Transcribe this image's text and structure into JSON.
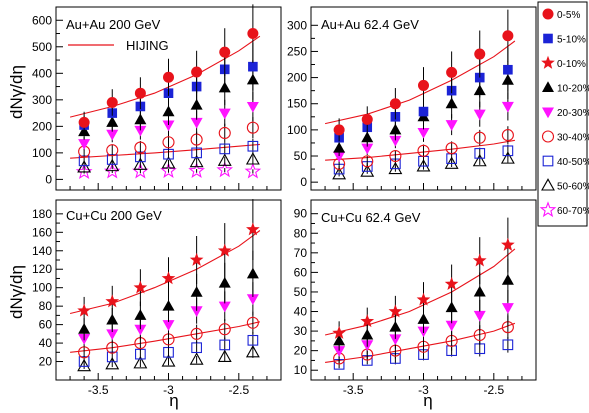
{
  "figure": {
    "ylabel": "dNγ/dη",
    "xlabel": "η",
    "legend": {
      "placement": "right",
      "items": [
        {
          "label": "0-5%",
          "marker": "circle-filled",
          "color": "#e8131b"
        },
        {
          "label": "5-10%",
          "marker": "square-filled",
          "color": "#1b23d6"
        },
        {
          "label": "0-10%",
          "marker": "star-filled",
          "color": "#e8131b"
        },
        {
          "label": "10-20%",
          "marker": "triangle-up-filled",
          "color": "#000000"
        },
        {
          "label": "20-30%",
          "marker": "triangle-down-filled",
          "color": "#ff13ff"
        },
        {
          "label": "30-40%",
          "marker": "circle-open",
          "color": "#e8131b"
        },
        {
          "label": "40-50%",
          "marker": "square-open",
          "color": "#1b23d6"
        },
        {
          "label": "50-60%",
          "marker": "triangle-up-open",
          "color": "#000000"
        },
        {
          "label": "60-70%",
          "marker": "star-open",
          "color": "#ff13ff"
        }
      ]
    },
    "hijing_label": "HIJING",
    "hijing_color": "#e8131b"
  },
  "chart_data": [
    {
      "type": "scatter",
      "title": "Au+Au 200 GeV",
      "x": [
        -3.6,
        -3.4,
        -3.2,
        -3.0,
        -2.8,
        -2.6,
        -2.4
      ],
      "xlim": [
        -3.8,
        -2.2
      ],
      "ylim": [
        -40,
        650
      ],
      "yticks": [
        0,
        100,
        200,
        300,
        400,
        500,
        600
      ],
      "xticks": [
        -3.5,
        -3,
        -2.5
      ],
      "legend": "HIJING",
      "series": [
        {
          "name": "0-5%",
          "values": [
            215,
            290,
            325,
            385,
            405,
            480,
            550
          ],
          "errors": [
            40,
            50,
            60,
            70,
            80,
            90,
            110
          ]
        },
        {
          "name": "5-10%",
          "values": [
            205,
            250,
            275,
            325,
            350,
            415,
            425
          ],
          "errors": [
            35,
            40,
            50,
            60,
            65,
            80,
            90
          ]
        },
        {
          "name": "10-20%",
          "values": [
            180,
            215,
            225,
            255,
            280,
            345,
            375
          ],
          "errors": [
            30,
            35,
            40,
            50,
            55,
            65,
            75
          ]
        },
        {
          "name": "20-30%",
          "values": [
            135,
            170,
            185,
            205,
            215,
            250,
            275
          ],
          "errors": [
            25,
            30,
            35,
            40,
            45,
            50,
            55
          ]
        },
        {
          "name": "30-40%",
          "values": [
            105,
            110,
            120,
            140,
            150,
            175,
            195
          ],
          "errors": [
            20,
            22,
            25,
            28,
            30,
            35,
            40
          ]
        },
        {
          "name": "40-50%",
          "values": [
            70,
            75,
            85,
            95,
            100,
            115,
            125
          ],
          "errors": [
            15,
            16,
            18,
            20,
            22,
            25,
            28
          ]
        },
        {
          "name": "50-60%",
          "values": [
            45,
            50,
            55,
            60,
            65,
            70,
            75
          ],
          "errors": [
            10,
            11,
            12,
            13,
            14,
            15,
            16
          ]
        },
        {
          "name": "60-70%",
          "values": [
            28,
            30,
            30,
            32,
            32,
            35,
            30
          ],
          "errors": [
            6,
            6,
            7,
            7,
            7,
            8,
            8
          ]
        }
      ],
      "hijing_lines": [
        {
          "x": [
            -3.7,
            -3.4,
            -3.1,
            -2.8,
            -2.5,
            -2.35
          ],
          "y": [
            235,
            275,
            325,
            395,
            485,
            540
          ]
        },
        {
          "x": [
            -3.7,
            -3.4,
            -3.1,
            -2.8,
            -2.5,
            -2.35
          ],
          "y": [
            80,
            90,
            100,
            112,
            125,
            132
          ]
        }
      ]
    },
    {
      "type": "scatter",
      "title": "Au+Au 62.4 GeV",
      "x": [
        -3.6,
        -3.4,
        -3.2,
        -3.0,
        -2.8,
        -2.6,
        -2.4
      ],
      "xlim": [
        -3.8,
        -2.2
      ],
      "ylim": [
        -15,
        335
      ],
      "yticks": [
        0,
        50,
        100,
        150,
        200,
        250,
        300
      ],
      "xticks": [
        -3.5,
        -3,
        -2.5
      ],
      "series": [
        {
          "name": "0-5%",
          "values": [
            100,
            120,
            150,
            185,
            210,
            245,
            280
          ],
          "errors": [
            22,
            25,
            30,
            35,
            40,
            45,
            50
          ]
        },
        {
          "name": "5-10%",
          "values": [
            85,
            105,
            125,
            135,
            175,
            200,
            215
          ],
          "errors": [
            18,
            20,
            25,
            28,
            32,
            38,
            42
          ]
        },
        {
          "name": "10-20%",
          "values": [
            65,
            85,
            100,
            125,
            150,
            175,
            195
          ],
          "errors": [
            15,
            17,
            20,
            24,
            28,
            32,
            36
          ]
        },
        {
          "name": "20-30%",
          "values": [
            50,
            65,
            80,
            95,
            110,
            130,
            145
          ],
          "errors": [
            12,
            13,
            15,
            18,
            20,
            24,
            27
          ]
        },
        {
          "name": "30-40%",
          "values": [
            35,
            40,
            50,
            60,
            65,
            85,
            90
          ],
          "errors": [
            9,
            10,
            11,
            12,
            13,
            15,
            17
          ]
        },
        {
          "name": "40-50%",
          "values": [
            25,
            30,
            35,
            40,
            45,
            55,
            60
          ],
          "errors": [
            6,
            7,
            8,
            9,
            10,
            11,
            12
          ]
        },
        {
          "name": "50-60%",
          "values": [
            15,
            20,
            25,
            30,
            35,
            40,
            45
          ],
          "errors": [
            4,
            4,
            5,
            6,
            6,
            7,
            8
          ]
        }
      ],
      "hijing_lines": [
        {
          "x": [
            -3.7,
            -3.4,
            -3.1,
            -2.8,
            -2.5,
            -2.35
          ],
          "y": [
            112,
            130,
            157,
            195,
            240,
            270
          ]
        },
        {
          "x": [
            -3.7,
            -3.4,
            -3.1,
            -2.8,
            -2.5,
            -2.35
          ],
          "y": [
            42,
            47,
            55,
            63,
            73,
            80
          ]
        }
      ]
    },
    {
      "type": "scatter",
      "title": "Cu+Cu 200 GeV",
      "x": [
        -3.6,
        -3.4,
        -3.2,
        -3.0,
        -2.8,
        -2.6,
        -2.4
      ],
      "xlim": [
        -3.8,
        -2.2
      ],
      "ylim": [
        0,
        195
      ],
      "yticks": [
        20,
        40,
        60,
        80,
        100,
        120,
        140,
        160,
        180
      ],
      "xticks": [
        -3.5,
        -3,
        -2.5
      ],
      "series": [
        {
          "name": "0-10%",
          "values": [
            75,
            85,
            100,
            110,
            130,
            140,
            163
          ],
          "errors": [
            15,
            17,
            20,
            23,
            26,
            30,
            33
          ]
        },
        {
          "name": "10-20%",
          "values": [
            55,
            65,
            70,
            80,
            95,
            105,
            115
          ],
          "errors": [
            12,
            13,
            15,
            17,
            20,
            22,
            25
          ]
        },
        {
          "name": "20-30%",
          "values": [
            45,
            50,
            55,
            60,
            75,
            80,
            88
          ],
          "errors": [
            9,
            10,
            11,
            12,
            14,
            16,
            18
          ]
        },
        {
          "name": "30-40%",
          "values": [
            30,
            35,
            40,
            44,
            50,
            55,
            62
          ],
          "errors": [
            6,
            7,
            8,
            9,
            10,
            11,
            12
          ]
        },
        {
          "name": "40-50%",
          "values": [
            20,
            25,
            28,
            30,
            35,
            38,
            43
          ],
          "errors": [
            4,
            5,
            5,
            6,
            7,
            8,
            9
          ]
        },
        {
          "name": "50-60%",
          "values": [
            15,
            17,
            18,
            20,
            22,
            25,
            30
          ],
          "errors": [
            3,
            3,
            4,
            4,
            4,
            5,
            6
          ]
        }
      ],
      "hijing_lines": [
        {
          "x": [
            -3.7,
            -3.4,
            -3.1,
            -2.8,
            -2.5,
            -2.35
          ],
          "y": [
            72,
            83,
            100,
            120,
            145,
            162
          ]
        },
        {
          "x": [
            -3.7,
            -3.4,
            -3.1,
            -2.8,
            -2.5,
            -2.35
          ],
          "y": [
            30,
            35,
            42,
            50,
            58,
            63
          ]
        }
      ]
    },
    {
      "type": "scatter",
      "title": "Cu+Cu 62.4 GeV",
      "x": [
        -3.6,
        -3.4,
        -3.2,
        -3.0,
        -2.8,
        -2.6,
        -2.4
      ],
      "xlim": [
        -3.8,
        -2.2
      ],
      "ylim": [
        5,
        97
      ],
      "yticks": [
        10,
        20,
        30,
        40,
        50,
        60,
        70,
        80,
        90
      ],
      "xticks": [
        -3.5,
        -3,
        -2.5
      ],
      "series": [
        {
          "name": "0-10%",
          "values": [
            29,
            35,
            40,
            46,
            54,
            66,
            74
          ],
          "errors": [
            6,
            7,
            8,
            9,
            10,
            12,
            14
          ]
        },
        {
          "name": "10-20%",
          "values": [
            25,
            28,
            32,
            36,
            42,
            50,
            56
          ],
          "errors": [
            5,
            6,
            6,
            7,
            8,
            10,
            11
          ]
        },
        {
          "name": "20-30%",
          "values": [
            20,
            23,
            26,
            30,
            33,
            38,
            42
          ],
          "errors": [
            4,
            5,
            5,
            6,
            7,
            8,
            9
          ]
        },
        {
          "name": "30-40%",
          "values": [
            16,
            18,
            20,
            22,
            25,
            28,
            32
          ],
          "errors": [
            3,
            3,
            4,
            4,
            5,
            5,
            6
          ]
        },
        {
          "name": "40-50%",
          "values": [
            13,
            15,
            16,
            18,
            20,
            21,
            23
          ],
          "errors": [
            2,
            2,
            3,
            3,
            3,
            4,
            4
          ]
        }
      ],
      "hijing_lines": [
        {
          "x": [
            -3.7,
            -3.4,
            -3.1,
            -2.8,
            -2.5,
            -2.35
          ],
          "y": [
            28,
            33,
            40,
            50,
            63,
            72
          ]
        },
        {
          "x": [
            -3.7,
            -3.4,
            -3.1,
            -2.8,
            -2.5,
            -2.35
          ],
          "y": [
            14,
            17,
            21,
            25,
            30,
            34
          ]
        }
      ]
    }
  ]
}
